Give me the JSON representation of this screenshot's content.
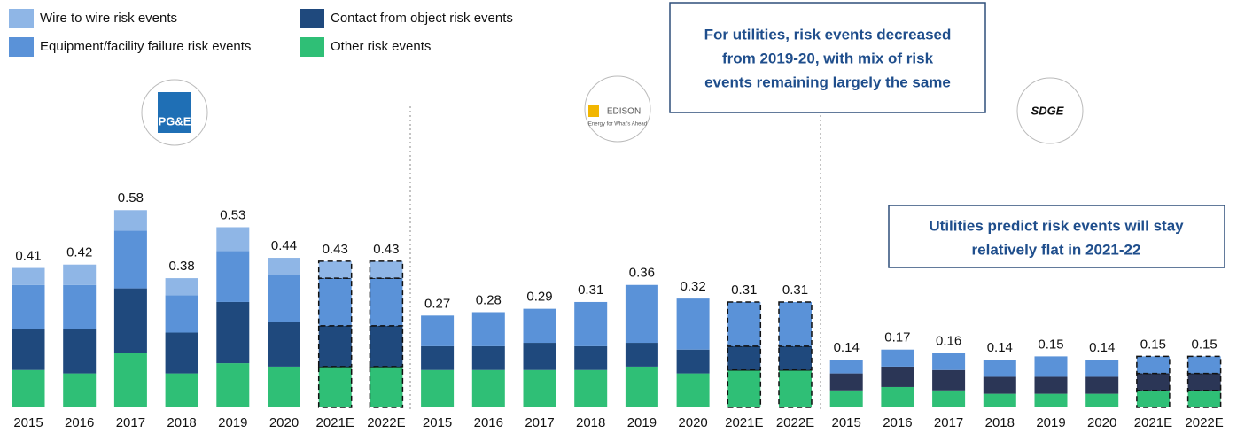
{
  "chart_data": [
    {
      "type": "bar",
      "stacked": true,
      "categories": [
        "2015",
        "2016",
        "2017",
        "2018",
        "2019",
        "2020",
        "2021E",
        "2022E"
      ],
      "projected": [
        false,
        false,
        false,
        false,
        false,
        false,
        true,
        true
      ],
      "totals": [
        0.41,
        0.42,
        0.58,
        0.38,
        0.53,
        0.44,
        0.43,
        0.43
      ],
      "series": [
        {
          "name": "Other risk events",
          "color": "#2fbf76",
          "values": [
            0.11,
            0.1,
            0.16,
            0.1,
            0.13,
            0.12,
            0.12,
            0.12
          ]
        },
        {
          "name": "Contact from object risk events",
          "color": "#1f497d",
          "values": [
            0.12,
            0.13,
            0.19,
            0.12,
            0.18,
            0.13,
            0.12,
            0.12
          ]
        },
        {
          "name": "Equipment/facility failure risk events",
          "color": "#5a92d8",
          "values": [
            0.13,
            0.13,
            0.17,
            0.11,
            0.15,
            0.14,
            0.14,
            0.14
          ]
        },
        {
          "name": "Wire to wire risk events",
          "color": "#8fb6e6",
          "values": [
            0.05,
            0.06,
            0.06,
            0.05,
            0.07,
            0.05,
            0.05,
            0.05
          ]
        }
      ]
    },
    {
      "type": "bar",
      "stacked": true,
      "categories": [
        "2015",
        "2016",
        "2017",
        "2018",
        "2019",
        "2020",
        "2021E",
        "2022E"
      ],
      "projected": [
        false,
        false,
        false,
        false,
        false,
        false,
        true,
        true
      ],
      "totals": [
        0.27,
        0.28,
        0.29,
        0.31,
        0.36,
        0.32,
        0.31,
        0.31
      ],
      "series": [
        {
          "name": "Other risk events",
          "color": "#2fbf76",
          "values": [
            0.11,
            0.11,
            0.11,
            0.11,
            0.12,
            0.1,
            0.11,
            0.11
          ]
        },
        {
          "name": "Contact from object risk events",
          "color": "#1f497d",
          "values": [
            0.07,
            0.07,
            0.08,
            0.07,
            0.07,
            0.07,
            0.07,
            0.07
          ]
        },
        {
          "name": "Equipment/facility failure risk events",
          "color": "#5a92d8",
          "values": [
            0.09,
            0.1,
            0.1,
            0.13,
            0.17,
            0.15,
            0.13,
            0.13
          ]
        }
      ]
    },
    {
      "type": "bar",
      "stacked": true,
      "categories": [
        "2015",
        "2016",
        "2017",
        "2018",
        "2019",
        "2020",
        "2021E",
        "2022E"
      ],
      "projected": [
        false,
        false,
        false,
        false,
        false,
        false,
        true,
        true
      ],
      "totals": [
        0.14,
        0.17,
        0.16,
        0.14,
        0.15,
        0.14,
        0.15,
        0.15
      ],
      "series": [
        {
          "name": "Other risk events",
          "color": "#2fbf76",
          "values": [
            0.05,
            0.06,
            0.05,
            0.04,
            0.04,
            0.04,
            0.05,
            0.05
          ]
        },
        {
          "name": "Contact from object risk events",
          "color": "#2b3656",
          "values": [
            0.05,
            0.06,
            0.06,
            0.05,
            0.05,
            0.05,
            0.05,
            0.05
          ]
        },
        {
          "name": "Equipment/facility failure risk events",
          "color": "#5a92d8",
          "values": [
            0.04,
            0.05,
            0.05,
            0.05,
            0.06,
            0.05,
            0.05,
            0.05
          ]
        }
      ]
    }
  ],
  "annotations": [
    {
      "lines": [
        "For utilities, risk events decreased",
        "from 2019-20, with mix of risk",
        "events remaining largely the same"
      ]
    },
    {
      "lines": [
        "Utilities predict risk events will stay",
        "relatively flat in 2021-22"
      ]
    }
  ],
  "logos": [
    "PG&E",
    "EDISON",
    "Energy for What's Ahead",
    "SDGE"
  ]
}
